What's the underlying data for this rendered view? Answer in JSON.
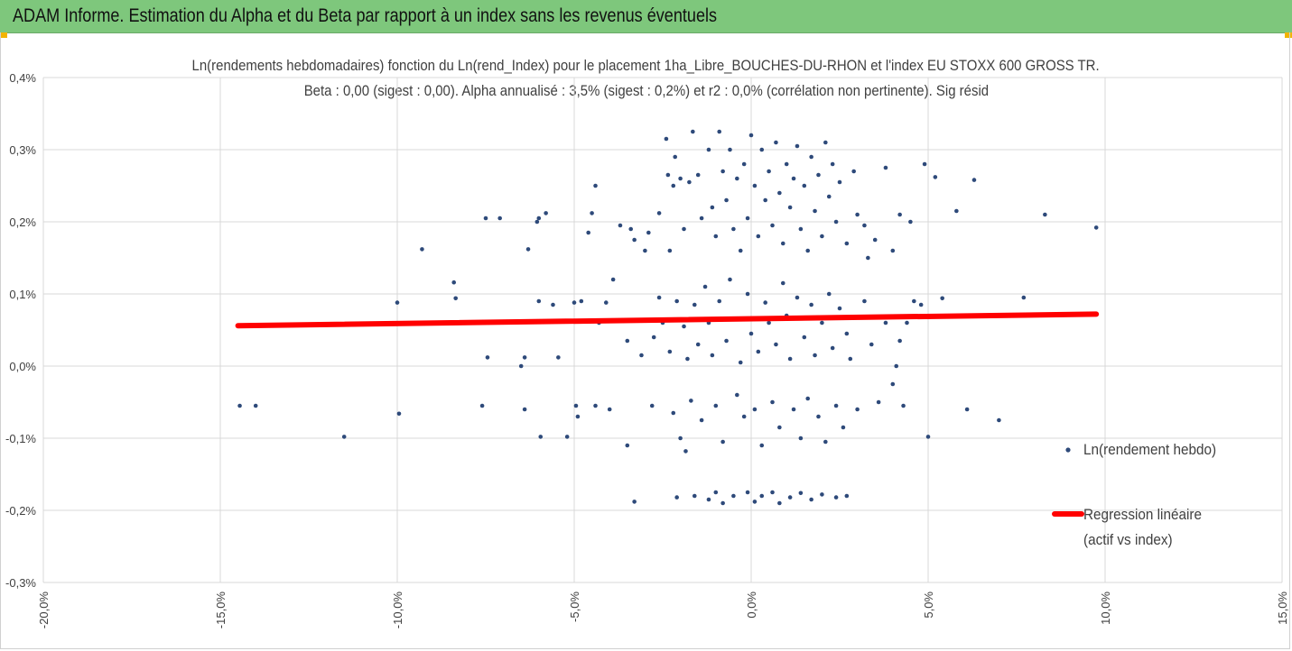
{
  "header": {
    "title": "ADAM Informe. Estimation du Alpha et du Beta par rapport à un index sans les revenus éventuels",
    "background": "#7ec77c",
    "corner_color": "#f2b400"
  },
  "chart_data": {
    "type": "scatter",
    "title_line1": "Ln(rendements hebdomadaires) fonction du Ln(rend_Index) pour le placement 1ha_Libre_BOUCHES-DU-RHON et l'index EU STOXX 600 GROSS TR.",
    "title_line2": "Beta : 0,00 (sigest : 0,00). Alpha annualisé : 3,5% (sigest : 0,2%) et r2 : 0,0% (corrélation non pertinente). Sig résid",
    "xlim": [
      -0.2,
      0.15
    ],
    "ylim": [
      -0.003,
      0.004
    ],
    "x_ticks": [
      "-20,0%",
      "-15,0%",
      "-10,0%",
      "-5,0%",
      "0,0%",
      "5,0%",
      "10,0%",
      "15,0%"
    ],
    "y_ticks": [
      "0,4%",
      "0,3%",
      "0,2%",
      "0,1%",
      "0,0%",
      "-0,1%",
      "-0,2%",
      "-0,3%"
    ],
    "grid": true,
    "series": [
      {
        "name": "Ln(rendement hebdo)",
        "color": "#2e4a7a",
        "marker": "circle",
        "points": [
          [
            -0.1445,
            -0.00055
          ],
          [
            -0.14,
            -0.00055
          ],
          [
            -0.115,
            -0.00098
          ],
          [
            -0.1,
            0.00088
          ],
          [
            -0.0995,
            -0.00066
          ],
          [
            -0.093,
            0.00162
          ],
          [
            -0.084,
            0.00116
          ],
          [
            -0.0835,
            0.00094
          ],
          [
            -0.075,
            0.00205
          ],
          [
            -0.0745,
            0.00012
          ],
          [
            -0.076,
            -0.00055
          ],
          [
            -0.071,
            0.00205
          ],
          [
            -0.065,
            0.0
          ],
          [
            -0.064,
            0.00012
          ],
          [
            -0.064,
            -0.0006
          ],
          [
            -0.063,
            0.00162
          ],
          [
            -0.0605,
            0.002
          ],
          [
            -0.06,
            0.00205
          ],
          [
            -0.0595,
            -0.00098
          ],
          [
            -0.058,
            0.00212
          ],
          [
            -0.0545,
            0.00012
          ],
          [
            -0.052,
            -0.00098
          ],
          [
            -0.05,
            0.00088
          ],
          [
            -0.0495,
            -0.00055
          ],
          [
            -0.046,
            0.00185
          ],
          [
            -0.045,
            0.00212
          ],
          [
            -0.044,
            0.0025
          ],
          [
            -0.041,
            0.00088
          ],
          [
            -0.039,
            0.0012
          ],
          [
            -0.037,
            0.00195
          ],
          [
            -0.035,
            -0.0011
          ],
          [
            -0.034,
            0.0019
          ],
          [
            -0.033,
            0.00175
          ],
          [
            -0.033,
            -0.00188
          ],
          [
            -0.03,
            0.0016
          ],
          [
            -0.029,
            0.00185
          ],
          [
            -0.0275,
            0.0004
          ],
          [
            -0.026,
            0.00212
          ],
          [
            -0.024,
            0.00315
          ],
          [
            -0.0235,
            0.00265
          ],
          [
            -0.023,
            0.0016
          ],
          [
            -0.022,
            0.0025
          ],
          [
            -0.0215,
            0.0029
          ],
          [
            -0.02,
            0.0026
          ],
          [
            -0.019,
            0.0019
          ],
          [
            -0.0185,
            -0.00118
          ],
          [
            -0.0175,
            0.00255
          ],
          [
            -0.0165,
            0.00325
          ],
          [
            -0.015,
            0.00265
          ],
          [
            -0.014,
            0.00205
          ],
          [
            -0.012,
            0.003
          ],
          [
            -0.011,
            0.0022
          ],
          [
            -0.01,
            0.0018
          ],
          [
            -0.009,
            0.00325
          ],
          [
            -0.008,
            0.0027
          ],
          [
            -0.007,
            0.0023
          ],
          [
            -0.006,
            0.003
          ],
          [
            -0.005,
            0.0019
          ],
          [
            -0.004,
            0.0026
          ],
          [
            -0.003,
            0.0016
          ],
          [
            -0.002,
            0.0028
          ],
          [
            -0.001,
            0.00205
          ],
          [
            0.0,
            0.0032
          ],
          [
            0.001,
            0.0025
          ],
          [
            0.002,
            0.0018
          ],
          [
            0.003,
            0.003
          ],
          [
            0.004,
            0.0023
          ],
          [
            0.005,
            0.0027
          ],
          [
            0.006,
            0.00195
          ],
          [
            0.007,
            0.0031
          ],
          [
            0.008,
            0.0024
          ],
          [
            0.009,
            0.0017
          ],
          [
            0.01,
            0.0028
          ],
          [
            0.011,
            0.0022
          ],
          [
            0.012,
            0.0026
          ],
          [
            0.013,
            0.00305
          ],
          [
            0.014,
            0.0019
          ],
          [
            0.015,
            0.0025
          ],
          [
            0.016,
            0.0016
          ],
          [
            0.017,
            0.0029
          ],
          [
            0.018,
            0.00215
          ],
          [
            0.019,
            0.00265
          ],
          [
            0.02,
            0.0018
          ],
          [
            0.021,
            0.0031
          ],
          [
            0.022,
            0.00235
          ],
          [
            0.023,
            0.0028
          ],
          [
            0.024,
            0.002
          ],
          [
            0.025,
            0.00255
          ],
          [
            0.027,
            0.0017
          ],
          [
            0.029,
            0.0027
          ],
          [
            0.03,
            0.0021
          ],
          [
            0.032,
            0.00195
          ],
          [
            0.033,
            0.0015
          ],
          [
            0.035,
            0.00175
          ],
          [
            0.038,
            0.00275
          ],
          [
            0.04,
            0.0016
          ],
          [
            0.042,
            0.0021
          ],
          [
            0.045,
            0.002
          ],
          [
            0.048,
            0.00085
          ],
          [
            0.049,
            0.0028
          ],
          [
            0.05,
            -0.00098
          ],
          [
            0.052,
            0.00262
          ],
          [
            0.054,
            0.00094
          ],
          [
            0.058,
            0.00215
          ],
          [
            0.061,
            -0.0006
          ],
          [
            0.063,
            0.00258
          ],
          [
            0.07,
            -0.00075
          ],
          [
            0.077,
            0.00095
          ],
          [
            0.083,
            0.0021
          ],
          [
            0.0975,
            0.00192
          ],
          [
            -0.06,
            0.0009
          ],
          [
            -0.056,
            0.00085
          ],
          [
            -0.043,
            0.0006
          ],
          [
            -0.035,
            0.00035
          ],
          [
            -0.031,
            0.00015
          ],
          [
            -0.028,
            -0.00055
          ],
          [
            -0.026,
            0.00095
          ],
          [
            -0.025,
            0.0006
          ],
          [
            -0.023,
            0.0002
          ],
          [
            -0.022,
            -0.00065
          ],
          [
            -0.021,
            0.0009
          ],
          [
            -0.02,
            -0.001
          ],
          [
            -0.019,
            0.00055
          ],
          [
            -0.018,
            0.0001
          ],
          [
            -0.017,
            -0.00048
          ],
          [
            -0.016,
            0.00085
          ],
          [
            -0.015,
            0.0003
          ],
          [
            -0.014,
            -0.00075
          ],
          [
            -0.013,
            0.0011
          ],
          [
            -0.012,
            0.0006
          ],
          [
            -0.011,
            0.00015
          ],
          [
            -0.01,
            -0.00055
          ],
          [
            -0.009,
            0.0009
          ],
          [
            -0.008,
            -0.00105
          ],
          [
            -0.007,
            0.00035
          ],
          [
            -0.006,
            0.0012
          ],
          [
            -0.005,
            0.00065
          ],
          [
            -0.004,
            -0.0004
          ],
          [
            -0.003,
            5e-05
          ],
          [
            -0.002,
            -0.0007
          ],
          [
            -0.001,
            0.001
          ],
          [
            0.0,
            0.00045
          ],
          [
            0.001,
            -0.0006
          ],
          [
            0.002,
            0.0002
          ],
          [
            0.003,
            -0.0011
          ],
          [
            0.004,
            0.00088
          ],
          [
            0.005,
            0.0006
          ],
          [
            0.006,
            -0.0005
          ],
          [
            0.007,
            0.0003
          ],
          [
            0.008,
            -0.00085
          ],
          [
            0.009,
            0.00115
          ],
          [
            0.01,
            0.0007
          ],
          [
            0.011,
            0.0001
          ],
          [
            0.012,
            -0.0006
          ],
          [
            0.013,
            0.00095
          ],
          [
            0.014,
            -0.001
          ],
          [
            0.015,
            0.0004
          ],
          [
            0.016,
            -0.00045
          ],
          [
            0.017,
            0.00085
          ],
          [
            0.018,
            0.00015
          ],
          [
            0.019,
            -0.0007
          ],
          [
            0.02,
            0.0006
          ],
          [
            0.021,
            -0.00105
          ],
          [
            0.022,
            0.001
          ],
          [
            0.023,
            0.00025
          ],
          [
            0.024,
            -0.00055
          ],
          [
            0.025,
            0.0008
          ],
          [
            0.026,
            -0.00085
          ],
          [
            0.027,
            0.00045
          ],
          [
            0.028,
            0.0001
          ],
          [
            0.03,
            -0.0006
          ],
          [
            0.032,
            0.0009
          ],
          [
            0.034,
            0.0003
          ],
          [
            0.036,
            -0.0005
          ],
          [
            0.038,
            0.0006
          ],
          [
            0.04,
            -0.00025
          ],
          [
            0.042,
            0.00035
          ],
          [
            0.044,
            0.0006
          ],
          [
            0.046,
            0.0009
          ],
          [
            0.043,
            -0.00055
          ],
          [
            0.041,
            0.0
          ],
          [
            -0.012,
            -0.00185
          ],
          [
            -0.01,
            -0.00175
          ],
          [
            -0.008,
            -0.0019
          ],
          [
            -0.005,
            -0.0018
          ],
          [
            -0.001,
            -0.00175
          ],
          [
            0.001,
            -0.00188
          ],
          [
            0.003,
            -0.0018
          ],
          [
            0.006,
            -0.00175
          ],
          [
            0.008,
            -0.0019
          ],
          [
            0.011,
            -0.00182
          ],
          [
            0.014,
            -0.00176
          ],
          [
            0.017,
            -0.00185
          ],
          [
            0.02,
            -0.00178
          ],
          [
            0.024,
            -0.00182
          ],
          [
            0.027,
            -0.0018
          ],
          [
            -0.021,
            -0.00182
          ],
          [
            -0.016,
            -0.0018
          ],
          [
            -0.044,
            -0.00055
          ],
          [
            -0.04,
            -0.0006
          ],
          [
            -0.048,
            0.0009
          ],
          [
            -0.049,
            -0.0007
          ]
        ]
      },
      {
        "name": "Regression linéaire",
        "name_line2": "(actif vs index)",
        "color": "#ff0000",
        "type": "line",
        "points": [
          [
            -0.145,
            0.00056
          ],
          [
            0.0975,
            0.00072
          ]
        ]
      }
    ],
    "legend_position": "right"
  }
}
